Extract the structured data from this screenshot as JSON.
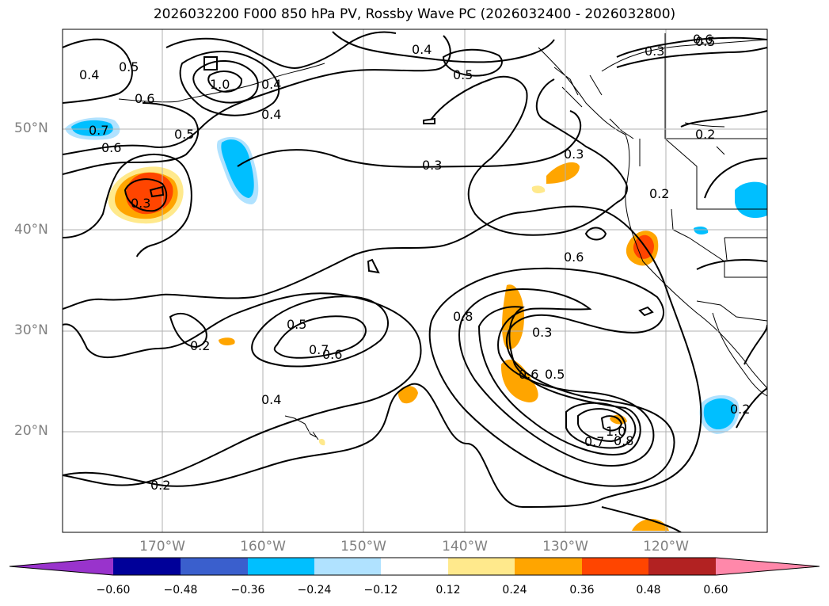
{
  "title": "2026032200 F000 850 hPa PV, Rossby Wave PC (2026032400 - 2026032800)",
  "lat_labels": [
    "50°N",
    "40°N",
    "30°N",
    "20°N"
  ],
  "lon_labels": [
    "170°W",
    "160°W",
    "150°W",
    "140°W",
    "130°W",
    "120°W"
  ],
  "colorbar": {
    "ticks": [
      "−0.60",
      "−0.48",
      "−0.36",
      "−0.24",
      "−0.12",
      "0.12",
      "0.24",
      "0.36",
      "0.48",
      "0.60"
    ],
    "colors": [
      "#9933cc",
      "#000099",
      "#3a5fcd",
      "#00bfff",
      "#b0e2ff",
      "#ffffff",
      "#ffe98c",
      "#ffa500",
      "#ff4500",
      "#b22222",
      "#ff88aa"
    ]
  },
  "contour_labels": [
    "0.4",
    "0.5",
    "0.6",
    "1.0",
    "0.4",
    "0.4",
    "0.5",
    "0.4",
    "0.5",
    "0.6",
    "0.3",
    "0.7",
    "0.6",
    "0.5",
    "0.3",
    "0.3",
    "0.2",
    "0.2",
    "0.3",
    "0.6",
    "0.8",
    "0.5",
    "0.7",
    "0.6",
    "0.3",
    "0.6",
    "0.5",
    "0.2",
    "0.4",
    "0.2",
    "1.0",
    "0.7",
    "0.8",
    "0.2"
  ]
}
